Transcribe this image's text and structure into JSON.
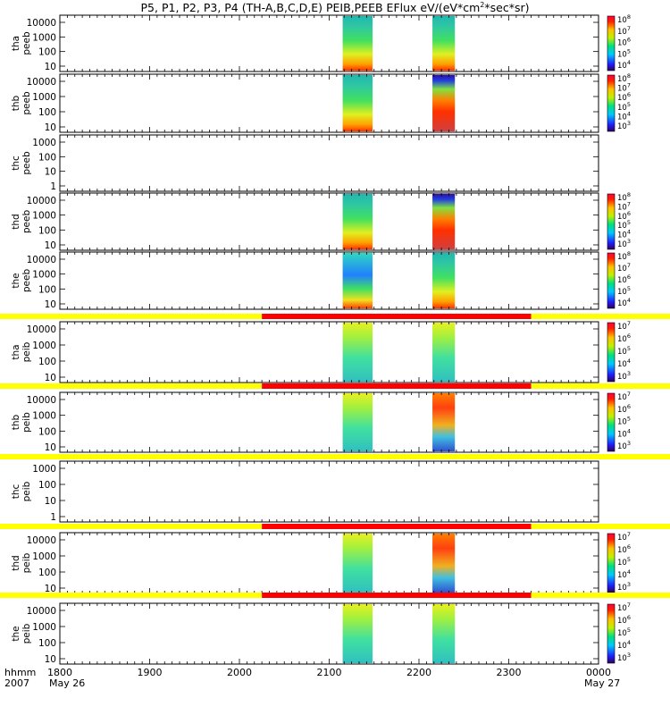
{
  "title": "P5, P1, P2, P3, P4 (TH-A,B,C,D,E) PEIB,PEEB EFlux eV/(eV*cm",
  "title_sup": "2",
  "title_tail": "*sec*sr)",
  "x_axis": {
    "label_line1": "hhmm",
    "label_line2": "2007",
    "ticks": [
      "1800",
      "1900",
      "2000",
      "2100",
      "2200",
      "2300",
      "0000"
    ],
    "date_start": "May 26",
    "date_end": "May 27"
  },
  "panels": [
    {
      "label1": "tha",
      "label2": "peeb",
      "yticks": [
        "10000",
        "1000",
        "100",
        "10"
      ],
      "colorbar": [
        "10",
        "10",
        "10",
        "10",
        "10"
      ],
      "colorbar_exp": [
        "8",
        "7",
        "6",
        "5",
        "4"
      ],
      "mode_bar": false
    },
    {
      "label1": "thb",
      "label2": "peeb",
      "yticks": [
        "10000",
        "1000",
        "100",
        "10"
      ],
      "colorbar": [
        "10",
        "10",
        "10",
        "10",
        "10",
        "10"
      ],
      "colorbar_exp": [
        "8",
        "7",
        "6",
        "5",
        "4",
        "3"
      ],
      "mode_bar": false
    },
    {
      "label1": "thc",
      "label2": "peeb",
      "yticks": [
        "1000",
        "100",
        "10",
        "1"
      ],
      "colorbar": [],
      "colorbar_exp": [],
      "mode_bar": false
    },
    {
      "label1": "thd",
      "label2": "peeb",
      "yticks": [
        "10000",
        "1000",
        "100",
        "10"
      ],
      "colorbar": [
        "10",
        "10",
        "10",
        "10",
        "10",
        "10"
      ],
      "colorbar_exp": [
        "8",
        "7",
        "6",
        "5",
        "4",
        "3"
      ],
      "mode_bar": false
    },
    {
      "label1": "the",
      "label2": "peeb",
      "yticks": [
        "10000",
        "1000",
        "100",
        "10"
      ],
      "colorbar": [
        "10",
        "10",
        "10",
        "10",
        "10"
      ],
      "colorbar_exp": [
        "8",
        "7",
        "6",
        "5",
        "4"
      ],
      "mode_bar": false
    },
    {
      "label1": "tha",
      "label2": "peib",
      "yticks": [
        "10000",
        "1000",
        "100",
        "10"
      ],
      "colorbar": [
        "10",
        "10",
        "10",
        "10",
        "10"
      ],
      "colorbar_exp": [
        "7",
        "6",
        "5",
        "4",
        "3"
      ],
      "mode_bar": true
    },
    {
      "label1": "thb",
      "label2": "peib",
      "yticks": [
        "10000",
        "1000",
        "100",
        "10"
      ],
      "colorbar": [
        "10",
        "10",
        "10",
        "10",
        "10"
      ],
      "colorbar_exp": [
        "7",
        "6",
        "5",
        "4",
        "3"
      ],
      "mode_bar": true
    },
    {
      "label1": "thc",
      "label2": "peib",
      "yticks": [
        "1000",
        "100",
        "10",
        "1"
      ],
      "colorbar": [],
      "colorbar_exp": [],
      "mode_bar": true
    },
    {
      "label1": "thd",
      "label2": "peib",
      "yticks": [
        "10000",
        "1000",
        "100",
        "10"
      ],
      "colorbar": [
        "10",
        "10",
        "10",
        "10",
        "10"
      ],
      "colorbar_exp": [
        "7",
        "6",
        "5",
        "4",
        "3"
      ],
      "mode_bar": true
    },
    {
      "label1": "the",
      "label2": "peib",
      "yticks": [
        "10000",
        "1000",
        "100",
        "10"
      ],
      "colorbar": [
        "10",
        "10",
        "10",
        "10",
        "10"
      ],
      "colorbar_exp": [
        "7",
        "6",
        "5",
        "4",
        "3"
      ],
      "mode_bar": true
    }
  ],
  "chart_data": {
    "type": "heatmap",
    "x_range": [
      "1800",
      "0000"
    ],
    "y_scale": "log",
    "data_intervals": [
      {
        "start": "2109",
        "end": "2129"
      },
      {
        "start": "2209",
        "end": "2224"
      }
    ],
    "mode_bars": [
      {
        "panel": "tha peib",
        "segments": [
          {
            "start": "1800",
            "end": "2015",
            "color": "#ffff00"
          },
          {
            "start": "2015",
            "end": "2315",
            "color": "#ff0000"
          },
          {
            "start": "2315",
            "end": "0000",
            "color": "#ffff00"
          }
        ]
      },
      {
        "panel": "thb peib",
        "segments": [
          {
            "start": "1800",
            "end": "2015",
            "color": "#ffff00"
          },
          {
            "start": "2015",
            "end": "2315",
            "color": "#ff0000"
          },
          {
            "start": "2315",
            "end": "0000",
            "color": "#ffff00"
          }
        ]
      },
      {
        "panel": "thc peib",
        "segments": [
          {
            "start": "1800",
            "end": "0000",
            "color": "#ffff00"
          }
        ]
      },
      {
        "panel": "thd peib",
        "segments": [
          {
            "start": "1800",
            "end": "2015",
            "color": "#ffff00"
          },
          {
            "start": "2015",
            "end": "2315",
            "color": "#ff0000"
          },
          {
            "start": "2315",
            "end": "0000",
            "color": "#ffff00"
          }
        ]
      },
      {
        "panel": "the peib",
        "segments": [
          {
            "start": "1800",
            "end": "2015",
            "color": "#ffff00"
          },
          {
            "start": "2015",
            "end": "2315",
            "color": "#ff0000"
          },
          {
            "start": "2315",
            "end": "0000",
            "color": "#ffff00"
          }
        ]
      }
    ]
  },
  "colors": {
    "axis": "#000000",
    "yellow": "#ffff00",
    "red": "#ff0000"
  }
}
